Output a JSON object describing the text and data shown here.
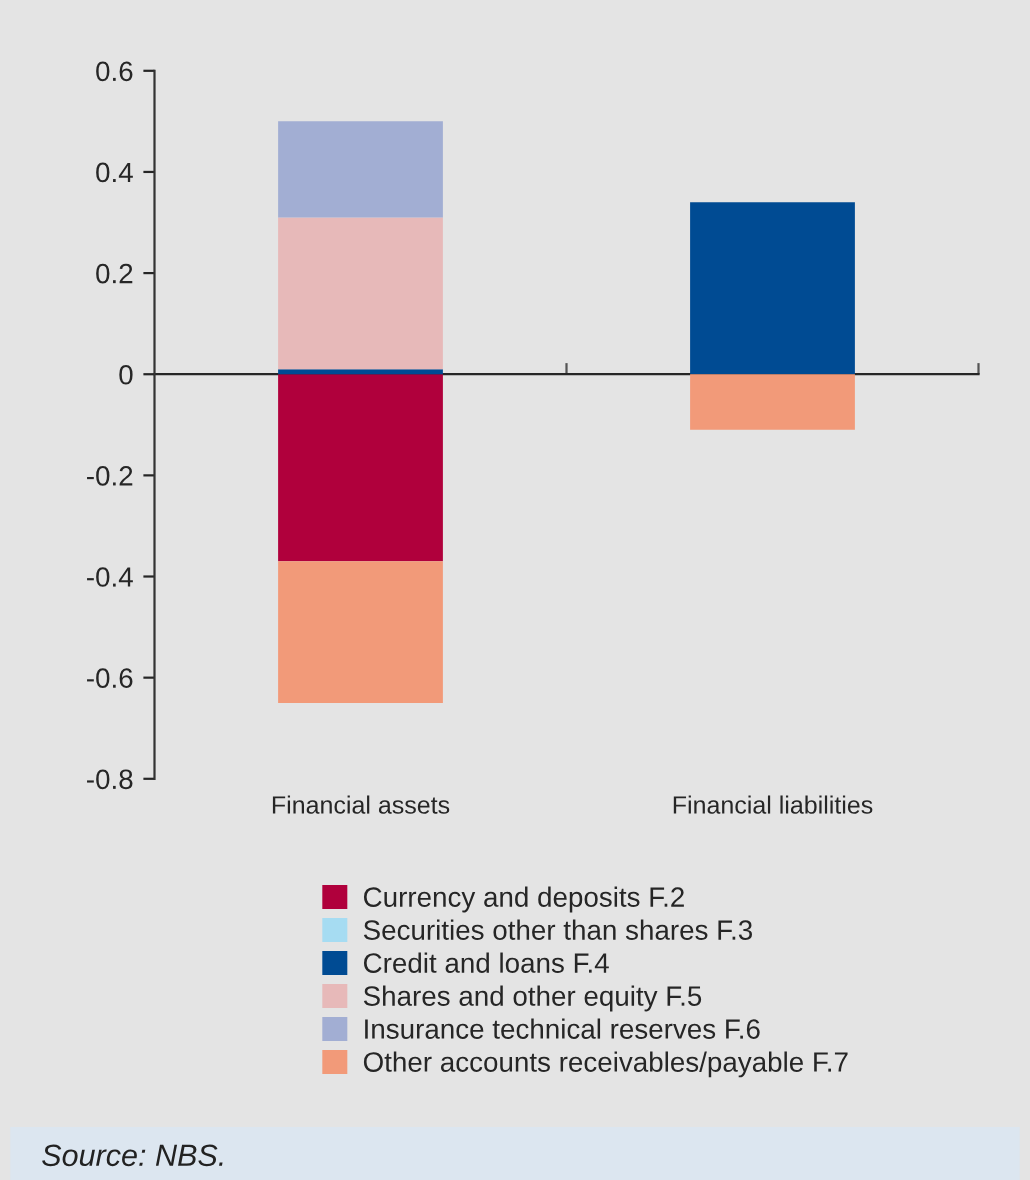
{
  "chart_data": {
    "type": "bar",
    "stacked": true,
    "categories": [
      "Financial assets",
      "Financial liabilities"
    ],
    "series": [
      {
        "name": "Currency and deposits F.2",
        "color": "#b0003c",
        "values": [
          -0.37,
          0
        ]
      },
      {
        "name": "Securities other than shares F.3",
        "color": "#a6dcf2",
        "values": [
          0,
          0
        ]
      },
      {
        "name": "Credit and loans F.4",
        "color": "#004b93",
        "values": [
          0.01,
          0.34
        ]
      },
      {
        "name": "Shares and other equity F.5",
        "color": "#e7b9b9",
        "values": [
          0.3,
          0
        ]
      },
      {
        "name": "Insurance technical reserves F.6",
        "color": "#a2aed3",
        "values": [
          0.19,
          0
        ]
      },
      {
        "name": "Other accounts receivables/payable F.7",
        "color": "#f29a79",
        "values": [
          -0.28,
          -0.11
        ]
      }
    ],
    "ylim": [
      -0.8,
      0.6
    ],
    "yticks": [
      -0.8,
      -0.6,
      -0.4,
      -0.2,
      0,
      0.2,
      0.4,
      0.6
    ],
    "legend": "bottom",
    "annotations": [
      "Source: NBS."
    ]
  }
}
